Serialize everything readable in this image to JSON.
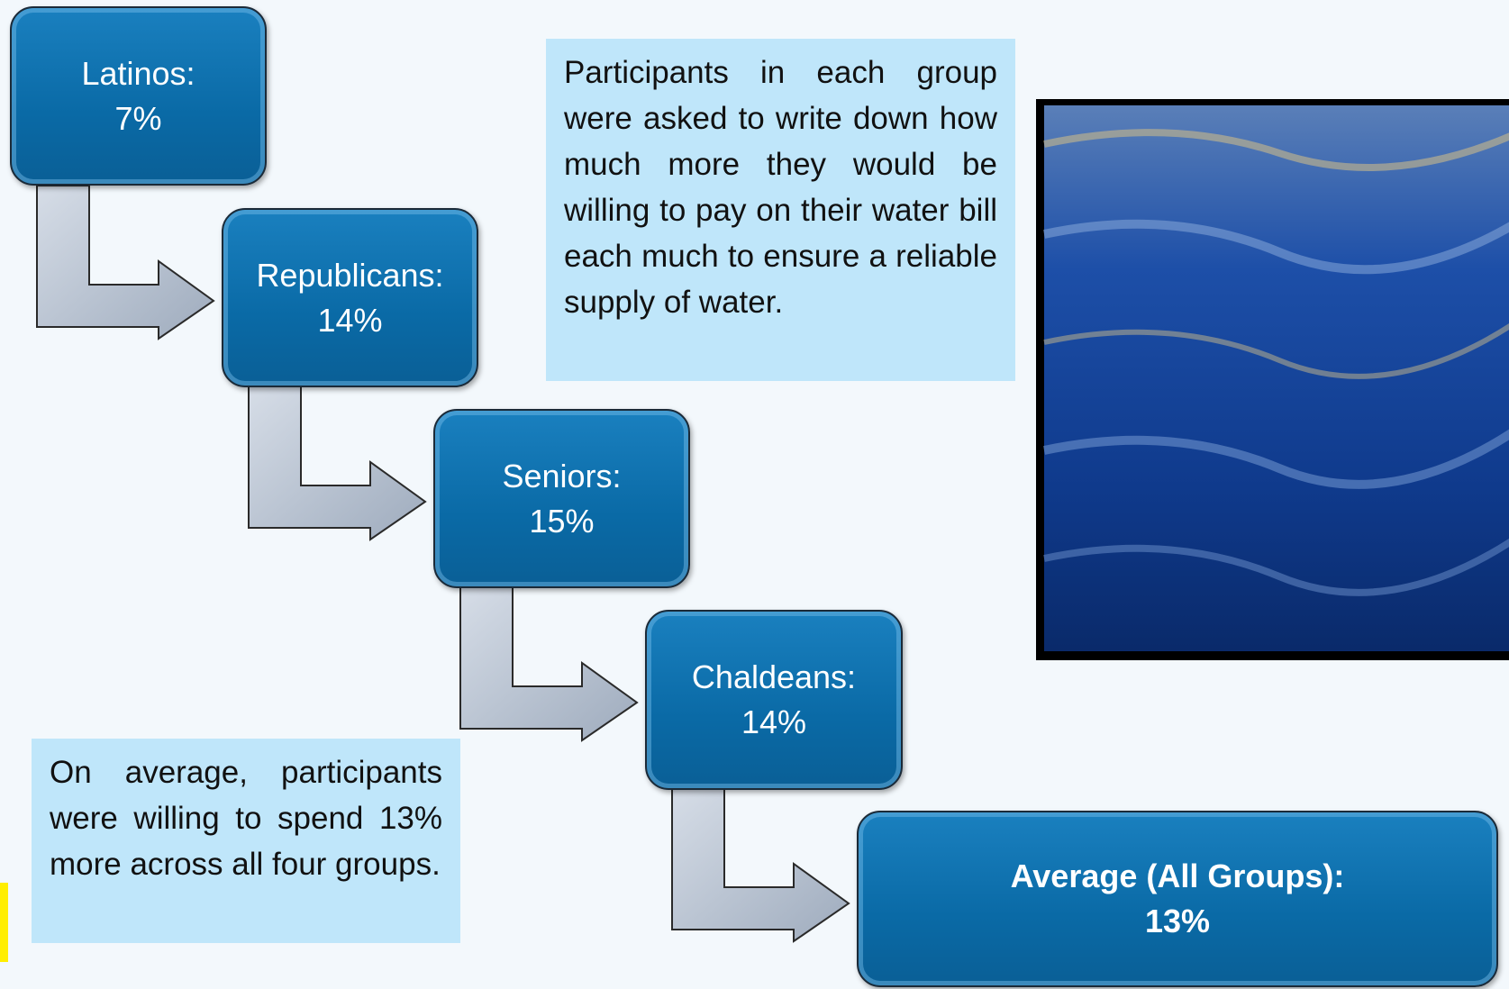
{
  "nodes": [
    {
      "label": "Latinos:",
      "value": "7%"
    },
    {
      "label": "Republicans:",
      "value": "14%"
    },
    {
      "label": "Seniors:",
      "value": "15%"
    },
    {
      "label": "Chaldeans:",
      "value": "14%"
    },
    {
      "label": "Average (All Groups):",
      "value": "13%"
    }
  ],
  "notes": [
    "Participants in each group were asked to write down how much more they would be willing to pay on their water bill each much to ensure a reliable supply of water.",
    "On average, participants were willing to spend 13% more across all four groups."
  ]
}
